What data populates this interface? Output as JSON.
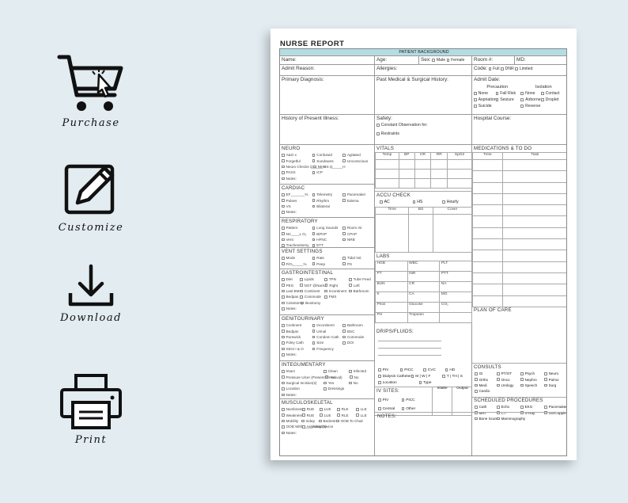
{
  "features": [
    {
      "label": "Purchase",
      "icon": "cart-icon"
    },
    {
      "label": "Customize",
      "icon": "pencil-icon"
    },
    {
      "label": "Download",
      "icon": "download-icon"
    },
    {
      "label": "Print",
      "icon": "printer-icon"
    }
  ],
  "form": {
    "title": "NURSE REPORT",
    "band": "PATIENT BACKGROUND",
    "name": "Name:",
    "age": "Age:",
    "sex": "Sex:",
    "male": "Male",
    "female": "Female",
    "room": "Room #:",
    "md": "MD:",
    "admit_reason": "Admit Reason:",
    "allergies": "Allergies:",
    "code": "Code:",
    "full": "Full",
    "dnr": "DNR",
    "limited": "Limited",
    "primary_dx": "Primary Diagnosis:",
    "pmh": "Past Medical & Surgical History:",
    "admit_date": "Admit Date:",
    "precaution": "Precaution",
    "isolation": "Isolation",
    "precautions": [
      "None",
      "Fall Risk",
      "Aspiration",
      "Seizure",
      "Suicide"
    ],
    "isolations": [
      "None",
      "Contact",
      "Airborne",
      "Droplet",
      "Reverse"
    ],
    "hpi": "History of Present Illness:",
    "safety": "Safety:",
    "constant_obs": "Constant Observation for:",
    "restraints": "Restraints",
    "hospital_course": "Hospital Course:",
    "neuro": {
      "title": "NEURO",
      "rows": [
        [
          "A&O x",
          "Confused",
          "Agitated"
        ],
        [
          "Forgetful",
          "Sundowns",
          "Unconscious"
        ],
        [
          "Neuro Checks Q_____H",
          "NIHSS Q_____H",
          ""
        ],
        [
          "PASS",
          "ICP",
          ""
        ],
        [
          "Notes:",
          "",
          ""
        ]
      ]
    },
    "cardiac": {
      "title": "CARDIAC",
      "rows": [
        [
          "EF_______%",
          "Telemetry",
          "Pacemaker"
        ],
        [
          "Pulses",
          "Rhythm",
          "Edema"
        ],
        [
          "VS",
          "Bilateral",
          ""
        ],
        [
          "Notes:",
          "",
          ""
        ]
      ]
    },
    "resp": {
      "title": "RESPIRATORY",
      "rows": [
        [
          "Pattern",
          "Lung Sounds",
          "Room Air"
        ],
        [
          "NC____L O₂",
          "BiPAP",
          "CPAP"
        ],
        [
          "Vent",
          "HFNC",
          "NRB"
        ],
        [
          "Tracheostomy",
          "ETT",
          ""
        ]
      ]
    },
    "vent": {
      "title": "VENT SETTINGS",
      "rows": [
        [
          "Mode",
          "Rate",
          "Tidal Vol."
        ],
        [
          "FiO₂_____%",
          "Peep",
          "PS"
        ]
      ]
    },
    "gi": {
      "title": "GASTROINTESTINAL",
      "rows": [
        [
          "Diet",
          "Lipids",
          "TPN",
          "Tube Feed"
        ],
        [
          "PEG",
          "NGT @Naris",
          "Right",
          "Left"
        ],
        [
          "Last BM",
          "Continent",
          "Incontinent",
          "Bathroom"
        ],
        [
          "Bedpan",
          "Commode",
          "FMS",
          ""
        ],
        [
          "Colostomy",
          "Ileostomy",
          "",
          ""
        ],
        [
          "Notes:",
          "",
          "",
          ""
        ]
      ]
    },
    "gu": {
      "title": "GENITOURINARY",
      "rows": [
        [
          "Continent",
          "Incontinent",
          "Bathroom"
        ],
        [
          "Bedpan",
          "Urinal",
          "BSC"
        ],
        [
          "Purewick",
          "Condom Cath",
          "Commode"
        ],
        [
          "Foley Cath",
          "Size",
          "DOI"
        ],
        [
          "Strict I & O",
          "Frequency",
          ""
        ],
        [
          "Notes:",
          "",
          ""
        ]
      ]
    },
    "integ": {
      "title": "INTEGUMENTARY",
      "rows": [
        [
          "Intact",
          "Clean",
          "Infected"
        ],
        [
          "Pressure Ulcer (Present on Arrival)",
          "Yes",
          "No"
        ],
        [
          "Surgical Incision(s)",
          "Yes",
          "No"
        ],
        [
          "Location",
          "Dressings",
          ""
        ],
        [
          "Notes:",
          "",
          ""
        ]
      ]
    },
    "msk": {
      "title": "MUSCULOSKELETAL",
      "rows": [
        [
          "Numbness",
          "RUE",
          "LUE",
          "RLE",
          "LLE"
        ],
        [
          "Weakness",
          "RUE",
          "LUE",
          "RLE",
          "LLE"
        ],
        [
          "Mobility",
          "Indep",
          "Bedrest",
          "OOB To Chair",
          ""
        ],
        [
          "OOB With_____Assist(s)",
          "Assisting Device",
          "",
          "",
          ""
        ],
        [
          "Notes:",
          "",
          "",
          "",
          ""
        ]
      ]
    },
    "vitals": {
      "title": "VITALS",
      "headers": [
        "Temp",
        "BP",
        "HR",
        "RR",
        "SpO2"
      ]
    },
    "accu": {
      "title": "ACCU CHECK",
      "opts": [
        "AC",
        "HS",
        "Hourly"
      ],
      "headers": [
        "Time",
        "BS",
        "Cover"
      ]
    },
    "labs": {
      "title": "LABS",
      "rows": [
        [
          "HGB",
          "WBC",
          "PLT"
        ],
        [
          "PT",
          "INR",
          "PTT"
        ],
        [
          "BUN",
          "CR",
          "NA"
        ],
        [
          "K",
          "CA",
          "MG"
        ],
        [
          "Phos",
          "Glucose",
          "CO₂"
        ],
        [
          "PH",
          "Troponin",
          ""
        ]
      ]
    },
    "drips": {
      "title": "DRIPS/FLUIDS:",
      "lines": [
        "PIV",
        "PICC",
        "CVC",
        "HD"
      ],
      "lines2": [
        "Dialysis Catheter",
        "M | W | F",
        "T | TH | S"
      ],
      "location": "Location",
      "type": "Type"
    },
    "iv": {
      "title": "IV SITES:",
      "intake": "Intake",
      "output": "Output",
      "opts": [
        "PIV",
        "PICC",
        "Central",
        "Other"
      ]
    },
    "meds": {
      "title": "MEDICATIONS & TO DO",
      "headers": [
        "Time",
        "Task"
      ]
    },
    "plan": "PLAN OF CARE",
    "consults": {
      "title": "CONSULTS",
      "rows": [
        [
          "GI",
          "PT/OT",
          "Psych",
          "Neuro"
        ],
        [
          "Ortho",
          "Onco",
          "Nephro",
          "Pulmo"
        ],
        [
          "Medi",
          "Urology",
          "Speech",
          "Surg"
        ],
        [
          "Cardio",
          "",
          "",
          ""
        ]
      ]
    },
    "sched": {
      "title": "SCHEDULED PROCEDURES",
      "rows": [
        [
          "Cath",
          "Echo",
          "EKG",
          "Pacemaker"
        ],
        [
          "MRI",
          "CT",
          "X-Ray",
          "US/Copplex"
        ],
        [
          "Bone Scan",
          "Mammography",
          "",
          ""
        ]
      ]
    },
    "notes": "NOTES:"
  }
}
